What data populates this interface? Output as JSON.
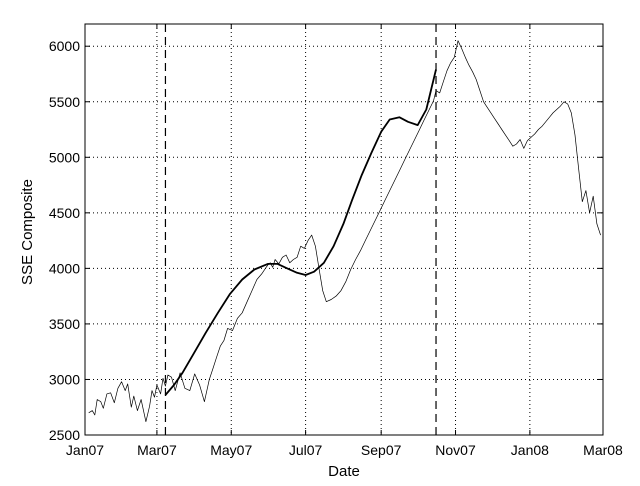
{
  "chart_data": {
    "type": "line",
    "title": "",
    "xlabel": "Date",
    "ylabel": "SSE Composite",
    "x_range": [
      "2007-01-01",
      "2008-03-01"
    ],
    "ylim": [
      2500,
      6200
    ],
    "grid": true,
    "x_tick_labels": [
      {
        "date": "2007-01-01",
        "label": "Jan07"
      },
      {
        "date": "2007-03-01",
        "label": "Mar07"
      },
      {
        "date": "2007-05-01",
        "label": "May07"
      },
      {
        "date": "2007-07-01",
        "label": "Jul07"
      },
      {
        "date": "2007-09-01",
        "label": "Sep07"
      },
      {
        "date": "2007-11-01",
        "label": "Nov07"
      },
      {
        "date": "2008-01-01",
        "label": "Jan08"
      },
      {
        "date": "2008-03-01",
        "label": "Mar08"
      }
    ],
    "y_ticks": [
      2500,
      3000,
      3500,
      4000,
      4500,
      5000,
      5500,
      6000
    ],
    "vertical_markers": [
      {
        "date": "2007-03-08",
        "style": "dashed"
      },
      {
        "date": "2007-10-16",
        "style": "dashed"
      }
    ],
    "series": [
      {
        "style": "thin",
        "x": [
          "2007-01-04",
          "2007-01-07",
          "2007-01-09",
          "2007-01-11",
          "2007-01-14",
          "2007-01-16",
          "2007-01-19",
          "2007-01-22",
          "2007-01-25",
          "2007-01-28",
          "2007-01-31",
          "2007-02-03",
          "2007-02-05",
          "2007-02-08",
          "2007-02-10",
          "2007-02-13",
          "2007-02-16",
          "2007-02-20",
          "2007-02-23",
          "2007-02-25",
          "2007-02-27",
          "2007-03-01",
          "2007-03-04",
          "2007-03-06",
          "2007-03-08",
          "2007-03-10",
          "2007-03-13",
          "2007-03-16",
          "2007-03-20",
          "2007-03-24",
          "2007-03-28",
          "2007-04-01",
          "2007-04-05",
          "2007-04-09",
          "2007-04-13",
          "2007-04-16",
          "2007-04-19",
          "2007-04-22",
          "2007-04-25",
          "2007-04-28",
          "2007-05-02",
          "2007-05-06",
          "2007-05-10",
          "2007-05-14",
          "2007-05-18",
          "2007-05-22",
          "2007-05-26",
          "2007-05-29",
          "2007-05-31",
          "2007-06-02",
          "2007-06-04",
          "2007-06-06",
          "2007-06-09",
          "2007-06-12",
          "2007-06-15",
          "2007-06-18",
          "2007-06-21",
          "2007-06-24",
          "2007-06-27",
          "2007-06-30",
          "2007-07-03",
          "2007-07-06",
          "2007-07-09",
          "2007-07-12",
          "2007-07-15",
          "2007-07-18",
          "2007-07-22",
          "2007-07-26",
          "2007-07-30",
          "2007-08-03",
          "2007-08-07",
          "2007-08-11",
          "2007-08-15",
          "2007-08-19",
          "2007-08-23",
          "2007-08-27",
          "2007-08-31",
          "2007-09-04",
          "2007-09-08",
          "2007-09-12",
          "2007-09-16",
          "2007-09-20",
          "2007-09-24",
          "2007-09-28",
          "2007-10-02",
          "2007-10-06",
          "2007-10-10",
          "2007-10-14",
          "2007-10-16",
          "2007-10-19",
          "2007-10-22",
          "2007-10-25",
          "2007-10-28",
          "2007-10-31",
          "2007-11-03",
          "2007-11-06",
          "2007-11-09",
          "2007-11-12",
          "2007-11-15",
          "2007-11-18",
          "2007-11-21",
          "2007-11-24",
          "2007-11-27",
          "2007-11-30",
          "2007-12-03",
          "2007-12-06",
          "2007-12-09",
          "2007-12-12",
          "2007-12-15",
          "2007-12-18",
          "2007-12-21",
          "2007-12-24",
          "2007-12-27",
          "2007-12-30",
          "2008-01-02",
          "2008-01-05",
          "2008-01-08",
          "2008-01-11",
          "2008-01-14",
          "2008-01-17",
          "2008-01-20",
          "2008-01-23",
          "2008-01-26",
          "2008-01-29",
          "2008-02-01",
          "2008-02-04",
          "2008-02-07",
          "2008-02-10",
          "2008-02-13",
          "2008-02-16",
          "2008-02-19",
          "2008-02-22",
          "2008-02-25",
          "2008-02-28"
        ],
        "values": [
          2700,
          2720,
          2680,
          2820,
          2800,
          2740,
          2870,
          2880,
          2790,
          2920,
          2980,
          2900,
          2960,
          2750,
          2850,
          2720,
          2820,
          2620,
          2760,
          2900,
          2840,
          2950,
          2870,
          3010,
          2940,
          3040,
          3020,
          2900,
          3060,
          2920,
          2900,
          3050,
          2950,
          2800,
          3000,
          3100,
          3200,
          3300,
          3350,
          3460,
          3440,
          3550,
          3600,
          3700,
          3800,
          3900,
          3950,
          4000,
          4030,
          4050,
          4010,
          4080,
          4040,
          4100,
          4120,
          4050,
          4080,
          4100,
          4200,
          4180,
          4250,
          4300,
          4200,
          4000,
          3800,
          3700,
          3720,
          3750,
          3800,
          3880,
          3990,
          4080,
          4160,
          4250,
          4340,
          4430,
          4520,
          4610,
          4700,
          4790,
          4880,
          4970,
          5060,
          5150,
          5240,
          5330,
          5420,
          5510,
          5600,
          5580,
          5680,
          5780,
          5850,
          5900,
          6050,
          5980,
          5900,
          5830,
          5770,
          5700,
          5600,
          5500,
          5450,
          5400,
          5350,
          5300,
          5250,
          5200,
          5150,
          5100,
          5120,
          5160,
          5080,
          5150,
          5180,
          5210,
          5250,
          5280,
          5320,
          5360,
          5400,
          5430,
          5460,
          5500,
          5480,
          5400,
          5200,
          4900,
          4600,
          4700,
          4500,
          4650,
          4400,
          4300
        ]
      },
      {
        "style": "bold",
        "x": [
          "2007-03-08",
          "2007-03-15",
          "2007-03-22",
          "2007-03-31",
          "2007-04-10",
          "2007-04-20",
          "2007-04-30",
          "2007-05-10",
          "2007-05-20",
          "2007-05-31",
          "2007-06-08",
          "2007-06-16",
          "2007-06-24",
          "2007-07-01",
          "2007-07-08",
          "2007-07-16",
          "2007-07-24",
          "2007-08-01",
          "2007-08-08",
          "2007-08-16",
          "2007-08-24",
          "2007-09-01",
          "2007-09-08",
          "2007-09-16",
          "2007-09-23",
          "2007-10-01",
          "2007-10-08",
          "2007-10-16"
        ],
        "values": [
          2860,
          2950,
          3060,
          3230,
          3420,
          3600,
          3770,
          3900,
          3990,
          4040,
          4040,
          4000,
          3960,
          3940,
          3970,
          4050,
          4200,
          4400,
          4610,
          4840,
          5040,
          5230,
          5340,
          5360,
          5320,
          5290,
          5430,
          5790
        ]
      }
    ]
  }
}
